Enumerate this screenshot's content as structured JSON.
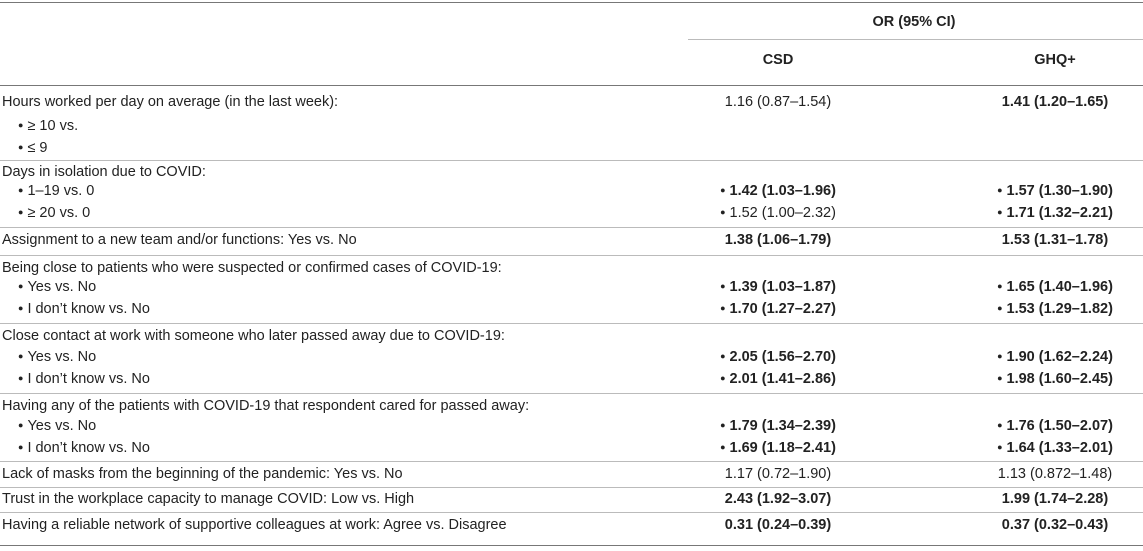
{
  "header": {
    "group": "OR (95% CI)",
    "col1": "CSD",
    "col2": "GHQ+"
  },
  "bullet": "●",
  "rows": [
    {
      "label": "Hours worked per day on average (in the last week):",
      "csd": "1.16 (0.87–1.54)",
      "ghq": "1.41 (1.20–1.65)"
    },
    {
      "label": "≥ 10 vs."
    },
    {
      "label": "≤ 9"
    },
    {
      "label": "Days in isolation due to COVID:"
    },
    {
      "label": "1–19 vs. 0",
      "csd": "1.42 (1.03–1.96)",
      "ghq": "1.57 (1.30–1.90)"
    },
    {
      "label": "≥ 20 vs. 0",
      "csd": "1.52 (1.00–2.32)",
      "ghq": "1.71 (1.32–2.21)"
    },
    {
      "label": "Assignment to a new team and/or functions: Yes vs. No",
      "csd": "1.38 (1.06–1.79)",
      "ghq": "1.53 (1.31–1.78)"
    },
    {
      "label": "Being close to patients who were suspected or confirmed cases of COVID-19:"
    },
    {
      "label": "Yes vs. No",
      "csd": "1.39 (1.03–1.87)",
      "ghq": "1.65 (1.40–1.96)"
    },
    {
      "label": "I don’t know vs. No",
      "csd": "1.70 (1.27–2.27)",
      "ghq": "1.53 (1.29–1.82)"
    },
    {
      "label": "Close contact at work with someone who later passed away due to COVID-19:"
    },
    {
      "label": "Yes vs. No",
      "csd": "2.05 (1.56–2.70)",
      "ghq": "1.90 (1.62–2.24)"
    },
    {
      "label": "I don’t know vs. No",
      "csd": "2.01 (1.41–2.86)",
      "ghq": "1.98 (1.60–2.45)"
    },
    {
      "label": "Having any of the patients with COVID-19 that respondent cared for passed away:"
    },
    {
      "label": "Yes vs. No",
      "csd": "1.79 (1.34–2.39)",
      "ghq": "1.76 (1.50–2.07)"
    },
    {
      "label": "I don’t know vs. No",
      "csd": "1.69 (1.18–2.41)",
      "ghq": "1.64 (1.33–2.01)"
    },
    {
      "label": "Lack of masks from the beginning of the pandemic: Yes vs. No",
      "csd": "1.17 (0.72–1.90)",
      "ghq": "1.13 (0.872–1.48)"
    },
    {
      "label": "Trust in the workplace capacity to manage COVID: Low vs. High",
      "csd": "2.43 (1.92–3.07)",
      "ghq": "1.99 (1.74–2.28)"
    },
    {
      "label": "Having a reliable network of supportive colleagues at work: Agree vs. Disagree",
      "csd": "0.31 (0.24–0.39)",
      "ghq": "0.37 (0.32–0.43)"
    }
  ]
}
